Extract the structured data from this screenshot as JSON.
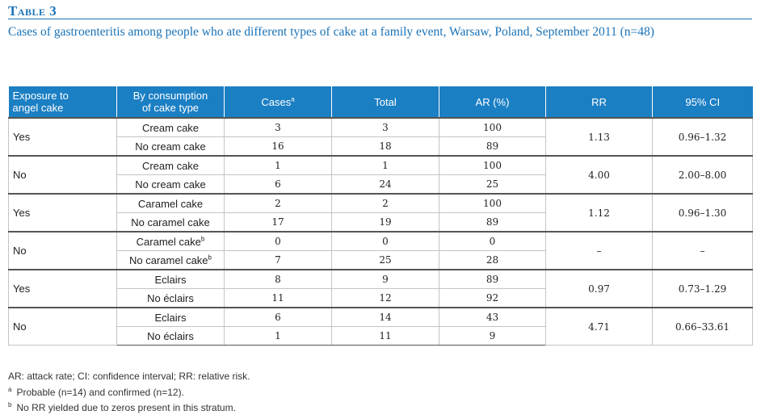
{
  "table_label": "Table 3",
  "caption": "Cases of gastroenteritis among people who ate different types of cake at a family event, Warsaw, Poland, September 2011 (n=48)",
  "headers": {
    "exposure": "Exposure to angel cake",
    "consumption": "By consumption of cake type",
    "cases": "Cases",
    "cases_sup": "a",
    "total": "Total",
    "ar": "AR (%)",
    "rr": "RR",
    "ci": "95% CI"
  },
  "groups": [
    {
      "exposure": "Yes",
      "rr": "1.13",
      "ci": "0.96–1.32",
      "rows": [
        {
          "type": "Cream cake",
          "sup": "",
          "cases": "3",
          "total": "3",
          "ar": "100"
        },
        {
          "type": "No cream cake",
          "sup": "",
          "cases": "16",
          "total": "18",
          "ar": "89"
        }
      ]
    },
    {
      "exposure": "No",
      "rr": "4.00",
      "ci": "2.00–8.00",
      "rows": [
        {
          "type": "Cream cake",
          "sup": "",
          "cases": "1",
          "total": "1",
          "ar": "100"
        },
        {
          "type": "No cream cake",
          "sup": "",
          "cases": "6",
          "total": "24",
          "ar": "25"
        }
      ]
    },
    {
      "exposure": "Yes",
      "rr": "1.12",
      "ci": "0.96–1.30",
      "rows": [
        {
          "type": "Caramel cake",
          "sup": "",
          "cases": "2",
          "total": "2",
          "ar": "100"
        },
        {
          "type": "No caramel cake",
          "sup": "",
          "cases": "17",
          "total": "19",
          "ar": "89"
        }
      ]
    },
    {
      "exposure": "No",
      "rr": "–",
      "ci": "–",
      "rows": [
        {
          "type": "Caramel cake",
          "sup": "b",
          "cases": "0",
          "total": "0",
          "ar": "0"
        },
        {
          "type": "No caramel cake",
          "sup": "b",
          "cases": "7",
          "total": "25",
          "ar": "28"
        }
      ]
    },
    {
      "exposure": "Yes",
      "rr": "0.97",
      "ci": "0.73–1.29",
      "rows": [
        {
          "type": "Eclairs",
          "sup": "",
          "cases": "8",
          "total": "9",
          "ar": "89"
        },
        {
          "type": "No éclairs",
          "sup": "",
          "cases": "11",
          "total": "12",
          "ar": "92"
        }
      ]
    },
    {
      "exposure": "No",
      "rr": "4.71",
      "ci": "0.66–33.61",
      "rows": [
        {
          "type": "Eclairs",
          "sup": "",
          "cases": "6",
          "total": "14",
          "ar": "43"
        },
        {
          "type": "No éclairs",
          "sup": "",
          "cases": "1",
          "total": "11",
          "ar": "9"
        }
      ]
    }
  ],
  "footnotes": {
    "abbrev": "AR: attack rate; CI: confidence interval; RR: relative risk.",
    "a_mark": "a",
    "a_text": "Probable (n=14) and confirmed (n=12).",
    "b_mark": "b",
    "b_text": "No RR yielded due to zeros present in this stratum."
  },
  "colors": {
    "accent": "#1a73b8",
    "header_bg": "#1b7fc4"
  }
}
